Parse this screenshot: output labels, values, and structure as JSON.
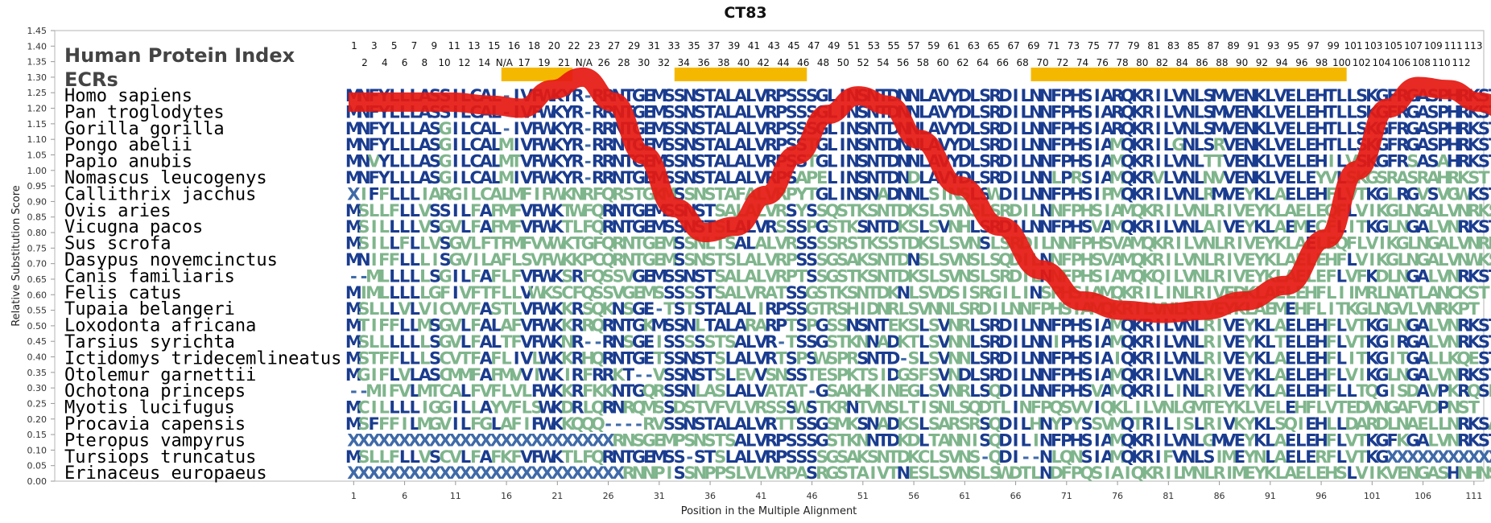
{
  "colors": {
    "high": "#1a3c8f",
    "mid": "#3f6aa8",
    "low": "#7fb58c",
    "band": "#e51a12",
    "ecr": "#f5b800"
  },
  "chart_data": {
    "type": "alignment",
    "title": "CT83",
    "xlabel": "Position in the Multiple Alignment",
    "ylabel": "Relative Substitution Score",
    "ylim": [
      0,
      1.45
    ],
    "yticks": [
      "0.00",
      "0.05",
      "0.10",
      "0.15",
      "0.20",
      "0.25",
      "0.30",
      "0.35",
      "0.40",
      "0.45",
      "0.50",
      "0.55",
      "0.60",
      "0.65",
      "0.70",
      "0.75",
      "0.80",
      "0.85",
      "0.90",
      "0.95",
      "1.00",
      "1.05",
      "1.10",
      "1.15",
      "1.20",
      "1.25",
      "1.30",
      "1.35",
      "1.40",
      "1.45"
    ],
    "xticks": [
      "1",
      "6",
      "11",
      "16",
      "21",
      "26",
      "31",
      "36",
      "41",
      "46",
      "51",
      "56",
      "61",
      "66",
      "71",
      "76",
      "81",
      "86",
      "91",
      "96",
      "101",
      "106",
      "111"
    ],
    "legend": {
      "index_label": "Human Protein Index",
      "ecr_label": "ECRs"
    },
    "index_row1": [
      "1",
      "3",
      "5",
      "7",
      "9",
      "11",
      "13",
      "15",
      "16",
      "18",
      "20",
      "22",
      "23",
      "27",
      "29",
      "31",
      "33",
      "35",
      "37",
      "39",
      "41",
      "43",
      "45",
      "47",
      "49",
      "51",
      "53",
      "55",
      "57",
      "59",
      "61",
      "63",
      "65",
      "67",
      "69",
      "71",
      "73",
      "75",
      "77",
      "79",
      "81",
      "83",
      "85",
      "87",
      "89",
      "91",
      "93",
      "95",
      "97",
      "99",
      "101",
      "103",
      "105",
      "107",
      "109",
      "111",
      "113"
    ],
    "index_row2": [
      "2",
      "4",
      "6",
      "8",
      "10",
      "12",
      "14",
      "N/A",
      "17",
      "19",
      "21",
      "N/A",
      "26",
      "28",
      "30",
      "32",
      "34",
      "36",
      "38",
      "40",
      "42",
      "44",
      "46",
      "48",
      "50",
      "52",
      "54",
      "56",
      "58",
      "60",
      "62",
      "64",
      "66",
      "68",
      "70",
      "72",
      "74",
      "76",
      "78",
      "80",
      "82",
      "84",
      "86",
      "88",
      "90",
      "92",
      "94",
      "96",
      "98",
      "100",
      "102",
      "104",
      "106",
      "108",
      "110",
      "112"
    ],
    "ecr_ranges": [
      [
        15,
        21
      ],
      [
        32,
        44
      ],
      [
        67,
        97
      ]
    ],
    "score_curve": [
      {
        "x": 0,
        "y": 1.22
      },
      {
        "x": 5,
        "y": 1.22
      },
      {
        "x": 10,
        "y": 1.22
      },
      {
        "x": 14,
        "y": 1.21
      },
      {
        "x": 17,
        "y": 1.2
      },
      {
        "x": 20,
        "y": 1.26
      },
      {
        "x": 23,
        "y": 1.3
      },
      {
        "x": 26,
        "y": 1.22
      },
      {
        "x": 29,
        "y": 1.05
      },
      {
        "x": 32,
        "y": 0.88
      },
      {
        "x": 35,
        "y": 0.8
      },
      {
        "x": 38,
        "y": 0.82
      },
      {
        "x": 41,
        "y": 0.92
      },
      {
        "x": 44,
        "y": 1.05
      },
      {
        "x": 47,
        "y": 1.18
      },
      {
        "x": 50,
        "y": 1.24
      },
      {
        "x": 53,
        "y": 1.21
      },
      {
        "x": 56,
        "y": 1.1
      },
      {
        "x": 60,
        "y": 0.95
      },
      {
        "x": 64,
        "y": 0.82
      },
      {
        "x": 68,
        "y": 0.68
      },
      {
        "x": 72,
        "y": 0.58
      },
      {
        "x": 76,
        "y": 0.55
      },
      {
        "x": 80,
        "y": 0.54
      },
      {
        "x": 84,
        "y": 0.55
      },
      {
        "x": 88,
        "y": 0.58
      },
      {
        "x": 92,
        "y": 0.63
      },
      {
        "x": 96,
        "y": 0.78
      },
      {
        "x": 99,
        "y": 1.0
      },
      {
        "x": 102,
        "y": 1.2
      },
      {
        "x": 105,
        "y": 1.27
      },
      {
        "x": 108,
        "y": 1.26
      },
      {
        "x": 111,
        "y": 1.22
      },
      {
        "x": 114,
        "y": 1.19
      }
    ],
    "species": [
      "Homo sapiens",
      "Pan troglodytes",
      "Gorilla gorilla",
      "Pongo abelii",
      "Papio anubis",
      "Nomascus leucogenys",
      "Callithrix jacchus",
      "Ovis aries",
      "Vicugna pacos",
      "Sus scrofa",
      "Dasypus novemcinctus",
      "Canis familiaris",
      "Felis catus",
      "Tupaia belangeri",
      "Loxodonta africana",
      "Tarsius syrichta",
      "Ictidomys tridecemlineatus",
      "Otolemur garnettii",
      "Ochotona princeps",
      "Myotis lucifugus",
      "Procavia capensis",
      "Pteropus vampyrus",
      "Tursiops truncatus",
      "Erinaceus europaeus"
    ],
    "sequences": [
      "MNFYLLLASSILCAL-IVFWKYR-RRNTGEMSSNSTALALVRPSSSGLINSNTDNNLAVYDLSRDILNNFPHSIARQKRILVNLSMVENKLVELEHTLLSKGFRGASPHRKST",
      "MNFYLLLASSILCAL-IVFWKYR-RRNTGEMSSNSTALALVRPSSSGLINSNTDNNLAVYDLSRDILNNFPHSIARQKRILVNLSMVENKLVELEHTLLSKGFRGASPHRKST",
      "MNFYLLLASGILCAL-IVFWKYR-RRNTGEMSSNSTALALVRPSSSGLINSNTDNNLAVYDLSRDILNNFPHSIARQKRILVNLSMVENKLVELEHTLLSKGFRGASPHRKST",
      "MNFYLLLASGILCALMIVFWKYR-RRNTGEMSSNSTALALVRPSSTGLINSNTDNNLAVYDLSRDILNNFPHSIAMQKRILGNLSRVENKLVELEHTLLSKGFRGASPHRKST",
      "MNVYLLLASGILCALMTVFWKYR-RRNTGEMSSNSTALALVRPSSTGLINSNTDNNLAVYDLSRDILNNFPHSIAMQKRILVNLTTVENKLVELEHILVSKGFRSASAHRKST",
      "MNFYLLLASGILCALMIVFWKYR-RRNTGEMSSNSTALALVRPSAPELINSNTDNDLAVYDLSRDILNNLPRSIAMQKRVLVNLNVVENKLVELEYVLSKGSRASRAHRKST",
      "XIFFLLLIARGILCALMFIFWKNRFQRSTGKMSSNSTAFALVRPYTGLINSNADNNLSINSLSWDILNNFPHSIPMQKRILVNLRMVEYKLAELEHFLVTKGLRGVSVGWKST",
      "MSLLFLLVSSILFAFMFVFWKTWFQRNTGEMSSNSTSALALVRSYSSQSTKSNTDKSLSVNSLSRDILNNFPHSIAMQKRILVNLRIVEYKLAELEQFLVIKGLNGALVNRKST",
      "MSILLLLVSGVLFAFMFVFWKTLFQRNTGEMSSNSTSLALVRSSSPGSTKSNTDKSLSVNHLSRDILNNFPHSVAMQKRILVNLAIVEYKLAEMECFLITKGLNGALVNRKST",
      "MSILLFLLVSGVLFTFMFVVWKTGFQRNTGEMSSNLTSALALVRSSSSRSTKSSTDKSLSVNSLSRDILNNFPHSVAMQKRILVNLRIVEYKLAELEQFLVIKGLNGALVNRKST",
      "MNIFFLLLISGVILAFLSVFWKKPCQRNTGEMSSNSTSLALVRPSSSGSAKSNTDNSLSVNSLSQDILNNFPHSVAMQKRILVNLRIVEYKLAELEHFLVIKGLNGALVNWKST",
      "--MLLLLLSGILFAFLFVFWKSRFQSSVGEMSSNSTSALALVRPTSSGSTKSNTDKSLSVNSLSRDILNNFPHSIAMQKQILVNLRIVEYKLAELEFLVFKDLNGALVNRKST",
      "MIMLLLLLGFIVFTFLLVWKSCFQSSVGEMSSSSSTSALVRATSSGSTKSNTDKNLSVDSISRGILINSPHSIAMQKRILINLRIVEDKLAELEHFLIIMRLNATLANCKST",
      "MSLLLVLVICVVFASTLVFWKKRSQKNSGE-TSTSTALALIRPSSGTRSHIDNRLSVNNLSRDILNNFPHSIAMQKRILVNLRIVEYKLAEMEHFLITKGLNGVLVNRKPT",
      "MTIFFLLMSGVLFALAFVFWKKRRQRNTGKMSSNLTALARARPTSPGSSNSNTEKSLSVNRLSRDILNNFPHSIAMQKRILVNLRIVEYKLAELEHFLVTKGLNGALVNRKST",
      "MSLLLLLLSGVLFALTFVFWKNR--RNSGEISSSSSTSALVR-TSSGSTKNNADKTLSVNNLSRDILNNIPHSIAMQKRILVNLRIVEYKLTELEHFLVTKGIRGALVNRKST",
      "MSTFFLLLSCVTFAFLIVLWKKRHQRNTGETSSNSTSLALVRTSPSWSPRSNTD-SLSVNNLSRDILNNFPHSIAIQKRILVNLRIVEYKLAELEHFLITKGITGALLKQEST",
      "MGIFLVLASCMMFAFMVVIWKIRFRRKT--VSSNSTSLEVVSNSSTESPKTSIDGSFSVNDLSRDILNNFPHSIAMQKRILVNLRIVEYKLAELEHFLVIKGLNGALVNRKST",
      "--MIFVLMTCALFVFLVLFWKKRFKKNTGQRSSNLASLALVATAT-GSAKHKINEGLSVNRLSQDILNNFPHSVAMQKRILINLRIVEYKLAELEHFLLTQGISDAVPKRQSP",
      "MCILLLLIGGILLAYVFLSWKDRLQRNRQMSSDSTVFVLVRSSSWSTKRNTVNSLTISNLSQDTLINFPQSVVIQKLILVNLGMTEYKLVELEHFLVTEDVNGAFVDPNST",
      "MSFFFILMGVILFGLAFIFWKKQQQ----RVSSNSTALALVRTTSSGSMKSNADKSLSARSRSQDILHNYPYSSVMQTRILISLRIVKYKLSQIEHLLDARDLNAELLNRKSA",
      "XXXXXXXXXXXXXXXXXXXXXXXXXXRNSGEMPSNSTSALVRPSSSGSTKNNTDKDLTANNISQDILINFPHSIAMQKRILVNLGMVEYKLAELEHFLVTKGFKGALVNRKST",
      "MSLLFLLVSCVLFAFKFVFWKTLFQRNTGEMSS-STSLALVRPSSSSGSAKSNTDKCLSVNS-QDI--NLQNSIAMQKRIFVNLSIMEYNLAELERFLVTKGXXXXXXXXXXX",
      "XXXXXXXXXXXXXXXXXXXXXXXXXXXRNNPISSNPPSLVLVRPASRGSTAIVTNESLSVNSLSWDTLNDFPQSIAIQKRILMNLRIMEYKLAELEHSLVIKVENGASHNHNST"
    ]
  }
}
